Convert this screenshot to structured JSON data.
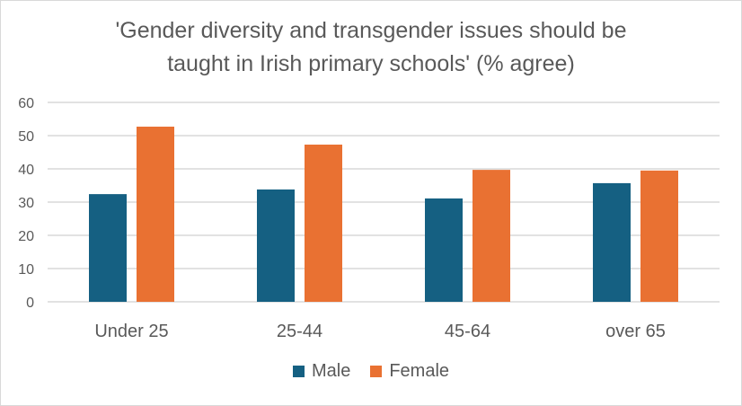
{
  "chart_data": {
    "type": "bar",
    "title_lines": [
      "'Gender diversity and transgender issues should be",
      "taught in Irish primary schools' (% agree)"
    ],
    "categories": [
      "Under 25",
      "25-44",
      "45-64",
      "over 65"
    ],
    "series": [
      {
        "name": "Male",
        "color": "#156082",
        "values": [
          32.4,
          33.8,
          31.1,
          35.7
        ]
      },
      {
        "name": "Female",
        "color": "#E97132",
        "values": [
          52.7,
          47.3,
          39.7,
          39.5
        ]
      }
    ],
    "ylim": [
      0,
      60
    ],
    "yticks": [
      0,
      10,
      20,
      30,
      40,
      50,
      60
    ],
    "grid": true,
    "legend": "bottom"
  }
}
